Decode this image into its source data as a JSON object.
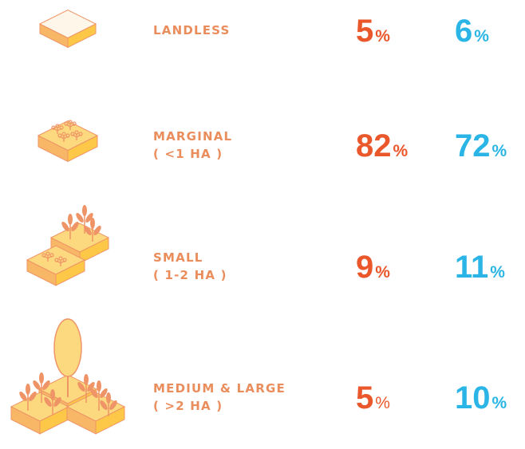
{
  "unit": "%",
  "rows": [
    {
      "label": [
        "LANDLESS"
      ],
      "values": [
        5,
        6
      ]
    },
    {
      "label": [
        "MARGINAL",
        "( <1 HA )"
      ],
      "values": [
        82,
        72
      ]
    },
    {
      "label": [
        "SMALL",
        "( 1-2 HA )"
      ],
      "values": [
        9,
        11
      ]
    },
    {
      "label": [
        "MEDIUM & LARGE",
        "( >2 HA )"
      ],
      "values": [
        5,
        10
      ]
    }
  ]
}
